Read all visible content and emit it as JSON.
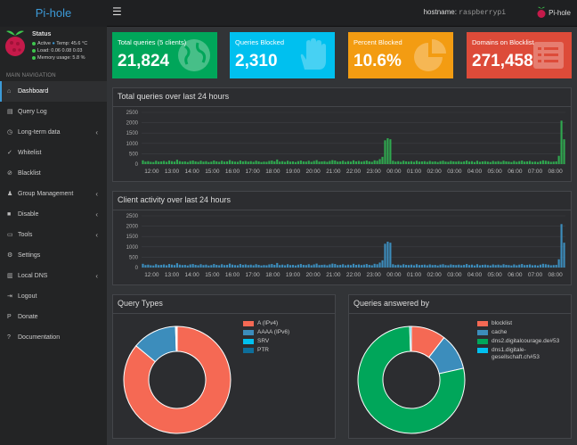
{
  "app": {
    "logo": "Pi-hole",
    "hostname_label": "hostname:",
    "hostname": "raspberrypi",
    "user": "Pi-hole"
  },
  "status": {
    "title": "Status",
    "active": "Active",
    "temp": "Temp: 45.6 °C",
    "load": "Load:  0.06  0.08  0.03",
    "memory": "Memory usage:  5.8 %"
  },
  "nav": {
    "header": "MAIN NAVIGATION",
    "items": [
      {
        "label": "Dashboard",
        "icon": "⌂",
        "chev": ""
      },
      {
        "label": "Query Log",
        "icon": "▤",
        "chev": ""
      },
      {
        "label": "Long-term data",
        "icon": "◷",
        "chev": "‹"
      },
      {
        "label": "Whitelist",
        "icon": "✓",
        "chev": ""
      },
      {
        "label": "Blacklist",
        "icon": "⊘",
        "chev": ""
      },
      {
        "label": "Group Management",
        "icon": "♟",
        "chev": "‹"
      },
      {
        "label": "Disable",
        "icon": "■",
        "chev": "‹"
      },
      {
        "label": "Tools",
        "icon": "▭",
        "chev": "‹"
      },
      {
        "label": "Settings",
        "icon": "⚙",
        "chev": ""
      },
      {
        "label": "Local DNS",
        "icon": "▥",
        "chev": "‹"
      },
      {
        "label": "Logout",
        "icon": "⇥",
        "chev": ""
      },
      {
        "label": "Donate",
        "icon": "P",
        "chev": ""
      },
      {
        "label": "Documentation",
        "icon": "?",
        "chev": ""
      }
    ]
  },
  "stats": {
    "total": {
      "title": "Total queries (5 clients)",
      "value": "21,824",
      "color": "#00a65a"
    },
    "blocked": {
      "title": "Queries Blocked",
      "value": "2,310",
      "color": "#00c0ef"
    },
    "percent": {
      "title": "Percent Blocked",
      "value": "10.6%",
      "color": "#f39c12"
    },
    "domains": {
      "title": "Domains on Blocklist",
      "value": "271,458",
      "color": "#dd4b39"
    }
  },
  "panels": {
    "queries_title": "Total queries over last 24 hours",
    "clients_title": "Client activity over last 24 hours",
    "types_title": "Query Types",
    "answered_title": "Queries answered by"
  },
  "chart_data": [
    {
      "type": "bar",
      "title": "Total queries over last 24 hours",
      "color": "#2fa84f",
      "ylim": [
        0,
        2500
      ],
      "yticks": [
        0,
        500,
        1000,
        1500,
        2000,
        2500
      ],
      "xticks": [
        "12:00",
        "13:00",
        "14:00",
        "15:00",
        "16:00",
        "17:00",
        "18:00",
        "19:00",
        "20:00",
        "21:00",
        "22:00",
        "23:00",
        "00:00",
        "01:00",
        "02:00",
        "03:00",
        "04:00",
        "05:00",
        "06:00",
        "07:00",
        "08:00"
      ],
      "values": [
        180,
        120,
        140,
        110,
        100,
        160,
        120,
        130,
        150,
        110,
        170,
        140,
        120,
        210,
        140,
        120,
        130,
        100,
        150,
        170,
        130,
        110,
        160,
        120,
        140,
        100,
        120,
        170,
        130,
        110,
        160,
        120,
        130,
        190,
        140,
        120,
        110,
        170,
        130,
        150,
        120,
        140,
        110,
        160,
        130,
        100,
        120,
        110,
        150,
        170,
        130,
        220,
        120,
        140,
        110,
        160,
        120,
        130,
        100,
        140,
        170,
        130,
        120,
        160,
        110,
        150,
        190,
        120,
        130,
        140,
        110,
        150,
        190,
        170,
        120,
        130,
        160,
        110,
        140,
        120,
        180,
        130,
        150,
        120,
        140,
        170,
        130,
        110,
        180,
        160,
        240,
        350,
        1150,
        1250,
        1200,
        160,
        120,
        140,
        110,
        160,
        130,
        120,
        140,
        110,
        160,
        120,
        130,
        140,
        110,
        150,
        120,
        130,
        100,
        140,
        160,
        120,
        110,
        150,
        130,
        120,
        140,
        110,
        130,
        170,
        120,
        140,
        100,
        160,
        110,
        130,
        140,
        120,
        100,
        150,
        120,
        140,
        110,
        160,
        130,
        120,
        100,
        150,
        110,
        140,
        170,
        120,
        130,
        150,
        110,
        120,
        100,
        140,
        180,
        160,
        140,
        110,
        120,
        130,
        400,
        2100,
        1200
      ]
    },
    {
      "type": "bar",
      "title": "Client activity over last 24 hours",
      "color": "#3c8dbc",
      "ylim": [
        0,
        2500
      ],
      "yticks": [
        0,
        500,
        1000,
        1500,
        2000,
        2500
      ],
      "xticks": [
        "12:00",
        "13:00",
        "14:00",
        "15:00",
        "16:00",
        "17:00",
        "18:00",
        "19:00",
        "20:00",
        "21:00",
        "22:00",
        "23:00",
        "00:00",
        "01:00",
        "02:00",
        "03:00",
        "04:00",
        "05:00",
        "06:00",
        "07:00",
        "08:00"
      ],
      "values": [
        180,
        120,
        140,
        110,
        100,
        160,
        120,
        130,
        150,
        110,
        170,
        140,
        120,
        210,
        140,
        120,
        130,
        100,
        150,
        170,
        130,
        110,
        160,
        120,
        140,
        100,
        120,
        170,
        130,
        110,
        160,
        120,
        130,
        190,
        140,
        120,
        110,
        170,
        130,
        150,
        120,
        140,
        110,
        160,
        130,
        100,
        120,
        110,
        150,
        170,
        130,
        220,
        120,
        140,
        110,
        160,
        120,
        130,
        100,
        140,
        170,
        130,
        120,
        160,
        110,
        150,
        190,
        120,
        130,
        140,
        110,
        150,
        190,
        170,
        120,
        130,
        160,
        110,
        140,
        120,
        180,
        130,
        150,
        120,
        140,
        170,
        130,
        110,
        180,
        160,
        240,
        350,
        1150,
        1250,
        1200,
        160,
        120,
        140,
        110,
        160,
        130,
        120,
        140,
        110,
        160,
        120,
        130,
        140,
        110,
        150,
        120,
        130,
        100,
        140,
        160,
        120,
        110,
        150,
        130,
        120,
        140,
        110,
        130,
        170,
        120,
        140,
        100,
        160,
        110,
        130,
        140,
        120,
        100,
        150,
        120,
        140,
        110,
        160,
        130,
        120,
        100,
        150,
        110,
        140,
        170,
        120,
        130,
        150,
        110,
        120,
        100,
        140,
        180,
        160,
        140,
        110,
        120,
        130,
        400,
        2100,
        1200
      ]
    },
    {
      "type": "pie",
      "title": "Query Types",
      "labels": [
        "A (IPv4)",
        "AAAA (IPv6)",
        "SRV",
        "PTR"
      ],
      "values": [
        86,
        13.5,
        0.3,
        0.2
      ],
      "colors": [
        "#f56954",
        "#3c8dbc",
        "#00c0ef",
        "#0e6e9a"
      ]
    },
    {
      "type": "pie",
      "title": "Queries answered by",
      "labels": [
        "blocklist",
        "cache",
        "dns2.digitalcourage.de#53",
        "dns1.digitale-gesellschaft.ch#53"
      ],
      "values": [
        10.5,
        11,
        78,
        0.5
      ],
      "colors": [
        "#f56954",
        "#3c8dbc",
        "#00a65a",
        "#00c0ef"
      ]
    }
  ]
}
